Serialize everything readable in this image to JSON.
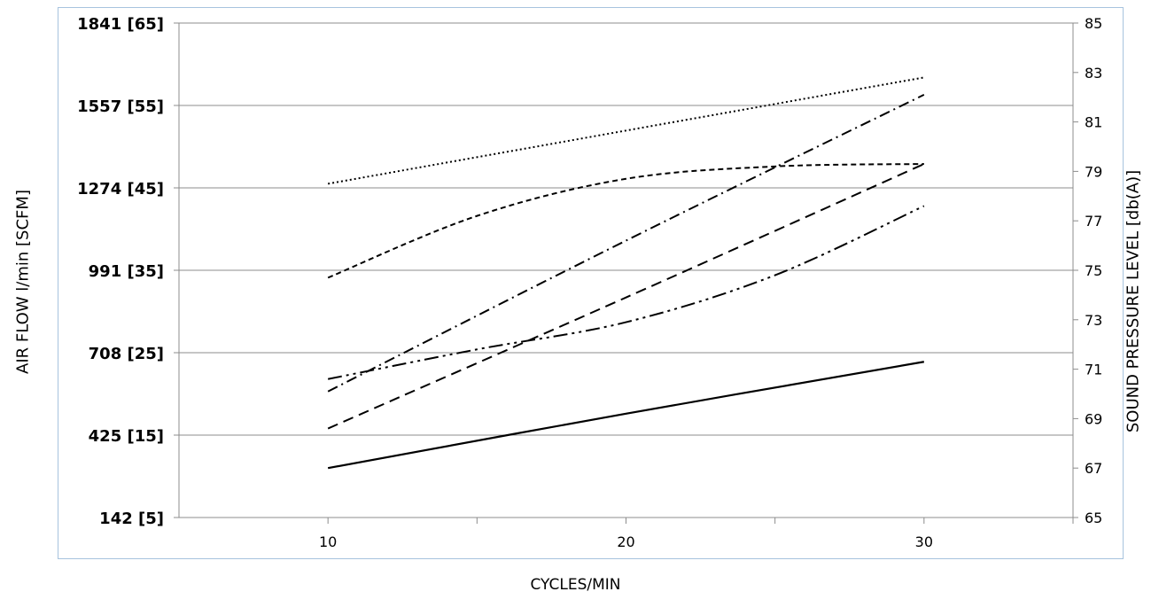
{
  "chart_data": {
    "type": "line",
    "title": "",
    "xlabel": "CYCLES/MIN",
    "ylabel": "AIR FLOW l/min [SCFM]",
    "y2label": "SOUND PRESSURE LEVEL [db(A)]",
    "xlim": [
      5,
      35
    ],
    "x_ticks": [
      10,
      15,
      20,
      25,
      30,
      35
    ],
    "x_tick_labels": [
      "10",
      "20",
      "30"
    ],
    "ylim": [
      65,
      85
    ],
    "y_left_tick_labels": [
      "1841 [65]",
      "1557 [55]",
      "1274 [45]",
      "991 [35]",
      "708 [25]",
      "425 [15]",
      "142 [5]"
    ],
    "y_right_ticks": [
      65,
      67,
      69,
      71,
      73,
      75,
      77,
      79,
      81,
      83,
      85
    ],
    "grid": true,
    "series": [
      {
        "style": "dotted",
        "x": [
          10,
          30
        ],
        "y": [
          78.5,
          82.8
        ]
      },
      {
        "style": "dash-dot",
        "x": [
          10,
          20,
          30
        ],
        "y": [
          70.1,
          76.2,
          82.1
        ]
      },
      {
        "style": "short-dash",
        "x": [
          10,
          15,
          20,
          25,
          30
        ],
        "y": [
          74.7,
          77.2,
          78.7,
          79.2,
          79.3
        ]
      },
      {
        "style": "long-dash",
        "x": [
          10,
          20,
          30
        ],
        "y": [
          68.6,
          73.9,
          79.3
        ]
      },
      {
        "style": "dash-dot-dot",
        "x": [
          10,
          15,
          20,
          25,
          30
        ],
        "y": [
          70.6,
          71.8,
          72.9,
          74.8,
          77.6
        ]
      },
      {
        "style": "solid",
        "x": [
          10,
          20,
          30
        ],
        "y": [
          67,
          69.2,
          71.3
        ]
      }
    ]
  }
}
